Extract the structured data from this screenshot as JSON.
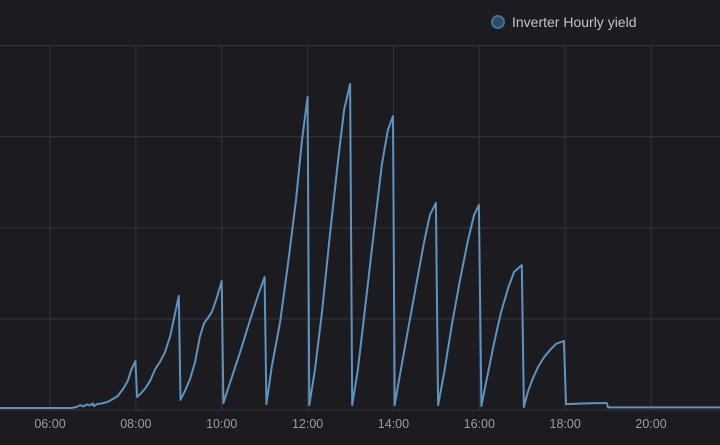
{
  "theme": {
    "background": "#1c1c20",
    "grid_color": "#34353a",
    "tick_label_color": "#9a9da1",
    "legend_text_color": "#c3c4c7"
  },
  "legend": {
    "label": "Inverter Hourly yield",
    "dot_fill": "#2e4d6b",
    "dot_border": "#44719c"
  },
  "chart_data": {
    "type": "line",
    "title": "",
    "description": "Sawtooth curve: inverter yield accumulates within each hour and resets on the hour. Values are percent of the 13:00 maximum (no y-axis labels shown).",
    "x_axis": {
      "kind": "time-of-day",
      "tick_labels": [
        "06:00",
        "08:00",
        "10:00",
        "12:00",
        "14:00",
        "16:00",
        "18:00",
        "20:00"
      ],
      "tick_hours": [
        6,
        8,
        10,
        12,
        14,
        16,
        18,
        20
      ],
      "range_hours": [
        4.84,
        21.61
      ],
      "grid": true
    },
    "y_axis": {
      "tick_labels": [],
      "unit": "percent of max hourly yield",
      "range": [
        0,
        111
      ],
      "gridline_count": 5,
      "grid": true
    },
    "legend_position": "top-right",
    "hourly_peaks": {
      "hours": [
        7,
        8,
        9,
        10,
        11,
        12,
        13,
        14,
        15,
        16,
        17,
        18,
        19
      ],
      "values": [
        1.4,
        14.5,
        34.6,
        39.2,
        40.4,
        96.0,
        100.0,
        90.1,
        63.3,
        62.7,
        44.1,
        20.7,
        1.5
      ]
    },
    "series": [
      {
        "name": "Inverter Hourly yield",
        "color": "#5d92c1",
        "points": [
          [
            4.84,
            0
          ],
          [
            6.5,
            0
          ],
          [
            6.62,
            0.3
          ],
          [
            6.7,
            0.9
          ],
          [
            6.78,
            0.5
          ],
          [
            6.86,
            1.1
          ],
          [
            6.93,
            0.8
          ],
          [
            7.0,
            1.4
          ],
          [
            7.02,
            0.6
          ],
          [
            7.1,
            1.2
          ],
          [
            7.24,
            1.5
          ],
          [
            7.35,
            1.9
          ],
          [
            7.47,
            2.8
          ],
          [
            7.58,
            3.7
          ],
          [
            7.72,
            6.2
          ],
          [
            7.82,
            8.6
          ],
          [
            7.89,
            11.7
          ],
          [
            7.99,
            14.5
          ],
          [
            8.03,
            3.4
          ],
          [
            8.1,
            4.3
          ],
          [
            8.21,
            5.9
          ],
          [
            8.33,
            8.3
          ],
          [
            8.45,
            12.0
          ],
          [
            8.56,
            14.2
          ],
          [
            8.68,
            17.3
          ],
          [
            8.8,
            22.2
          ],
          [
            8.89,
            27.8
          ],
          [
            9.0,
            34.6
          ],
          [
            9.04,
            2.5
          ],
          [
            9.14,
            5.2
          ],
          [
            9.26,
            8.9
          ],
          [
            9.38,
            14.2
          ],
          [
            9.49,
            21.9
          ],
          [
            9.59,
            26.2
          ],
          [
            9.68,
            27.8
          ],
          [
            9.77,
            29.6
          ],
          [
            9.87,
            33.3
          ],
          [
            10.0,
            39.2
          ],
          [
            10.04,
            1.5
          ],
          [
            10.19,
            7.7
          ],
          [
            10.43,
            17.3
          ],
          [
            10.66,
            27.2
          ],
          [
            10.85,
            34.9
          ],
          [
            11.0,
            40.4
          ],
          [
            11.04,
            1.2
          ],
          [
            11.17,
            13.0
          ],
          [
            11.36,
            26.5
          ],
          [
            11.54,
            44.0
          ],
          [
            11.73,
            64.2
          ],
          [
            11.87,
            82.7
          ],
          [
            12.0,
            96.0
          ],
          [
            12.04,
            0.9
          ],
          [
            12.17,
            11.7
          ],
          [
            12.34,
            30.2
          ],
          [
            12.52,
            53.4
          ],
          [
            12.71,
            76.5
          ],
          [
            12.85,
            92.0
          ],
          [
            12.99,
            100.0
          ],
          [
            13.04,
            0.9
          ],
          [
            13.17,
            11.7
          ],
          [
            13.36,
            33.3
          ],
          [
            13.55,
            54.9
          ],
          [
            13.73,
            75.0
          ],
          [
            13.87,
            85.8
          ],
          [
            13.99,
            90.1
          ],
          [
            14.03,
            0.9
          ],
          [
            14.15,
            10.2
          ],
          [
            14.34,
            24.1
          ],
          [
            14.53,
            38.0
          ],
          [
            14.71,
            50.9
          ],
          [
            14.85,
            59.6
          ],
          [
            14.99,
            63.3
          ],
          [
            15.04,
            0.9
          ],
          [
            15.18,
            10.8
          ],
          [
            15.36,
            25.6
          ],
          [
            15.55,
            39.5
          ],
          [
            15.74,
            51.9
          ],
          [
            15.88,
            59.6
          ],
          [
            15.99,
            62.7
          ],
          [
            16.05,
            0.6
          ],
          [
            16.18,
            9.3
          ],
          [
            16.34,
            19.8
          ],
          [
            16.5,
            29.3
          ],
          [
            16.67,
            37.0
          ],
          [
            16.81,
            42.0
          ],
          [
            16.99,
            44.1
          ],
          [
            17.04,
            0.3
          ],
          [
            17.13,
            4.9
          ],
          [
            17.25,
            9.3
          ],
          [
            17.37,
            12.7
          ],
          [
            17.51,
            15.7
          ],
          [
            17.65,
            17.9
          ],
          [
            17.79,
            19.8
          ],
          [
            17.97,
            20.7
          ],
          [
            18.02,
            1.2
          ],
          [
            18.4,
            1.4
          ],
          [
            18.75,
            1.5
          ],
          [
            18.97,
            1.5
          ],
          [
            19.0,
            0.2
          ],
          [
            21.61,
            0.2
          ]
        ]
      }
    ]
  }
}
